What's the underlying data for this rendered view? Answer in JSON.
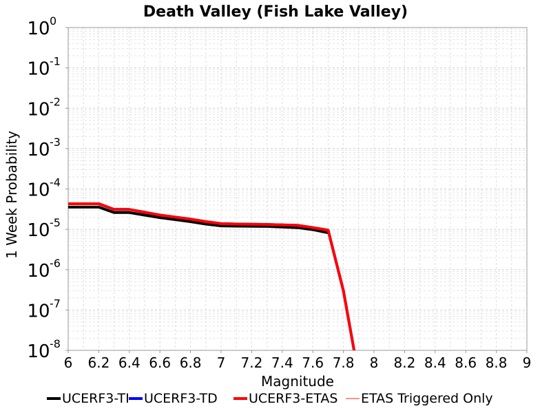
{
  "chart_data": {
    "type": "line",
    "title": "Death Valley (Fish Lake Valley)",
    "xlabel": "Magnitude",
    "ylabel": "1 Week Probability",
    "xlim": [
      6,
      9
    ],
    "ylim": [
      1e-08,
      1
    ],
    "yscale": "log",
    "grid": true,
    "legend_position": "bottom",
    "x_ticks": [
      "6",
      "6.2",
      "6.4",
      "6.6",
      "6.8",
      "7",
      "7.2",
      "7.4",
      "7.6",
      "7.8",
      "8",
      "8.2",
      "8.4",
      "8.6",
      "8.8",
      "9"
    ],
    "y_ticks": [
      {
        "base": "10",
        "exp": "0",
        "value": 1
      },
      {
        "base": "10",
        "exp": "-1",
        "value": 0.1
      },
      {
        "base": "10",
        "exp": "-2",
        "value": 0.01
      },
      {
        "base": "10",
        "exp": "-3",
        "value": 0.001
      },
      {
        "base": "10",
        "exp": "-4",
        "value": 0.0001
      },
      {
        "base": "10",
        "exp": "-5",
        "value": 1e-05
      },
      {
        "base": "10",
        "exp": "-6",
        "value": 1e-06
      },
      {
        "base": "10",
        "exp": "-7",
        "value": 1e-07
      },
      {
        "base": "10",
        "exp": "-8",
        "value": 1e-08
      }
    ],
    "series": [
      {
        "name": "UCERF3-TI",
        "color": "#000000",
        "x": [
          6.0,
          6.2,
          6.3,
          6.4,
          6.5,
          6.6,
          6.8,
          6.9,
          7.0,
          7.1,
          7.3,
          7.5,
          7.6,
          7.7
        ],
        "y": [
          3.55e-05,
          3.55e-05,
          2.6e-05,
          2.6e-05,
          2.25e-05,
          1.95e-05,
          1.55e-05,
          1.35e-05,
          1.22e-05,
          1.2e-05,
          1.18e-05,
          1.1e-05,
          9.8e-06,
          8.2e-06
        ]
      },
      {
        "name": "UCERF3-TD",
        "color": "#0000ff",
        "x": [
          6.0,
          6.2,
          6.3,
          6.4,
          6.5,
          6.6,
          6.8,
          6.9,
          7.0,
          7.1,
          7.3,
          7.5,
          7.6,
          7.7,
          7.8,
          7.87
        ],
        "y": [
          4.3e-05,
          4.3e-05,
          3.1e-05,
          3.1e-05,
          2.65e-05,
          2.25e-05,
          1.78e-05,
          1.55e-05,
          1.38e-05,
          1.35e-05,
          1.32e-05,
          1.25e-05,
          1.1e-05,
          9.5e-06,
          3e-07,
          1e-08
        ]
      },
      {
        "name": "UCERF3-ETAS",
        "color": "#ff0000",
        "x": [
          6.0,
          6.2,
          6.3,
          6.4,
          6.5,
          6.6,
          6.8,
          6.9,
          7.0,
          7.1,
          7.3,
          7.5,
          7.6,
          7.7,
          7.8,
          7.87
        ],
        "y": [
          4.3e-05,
          4.3e-05,
          3.1e-05,
          3.1e-05,
          2.65e-05,
          2.25e-05,
          1.78e-05,
          1.55e-05,
          1.38e-05,
          1.35e-05,
          1.32e-05,
          1.25e-05,
          1.1e-05,
          9.5e-06,
          3e-07,
          1e-08
        ]
      },
      {
        "name": "ETAS Triggered Only",
        "color": "#ff6b6b",
        "x": [],
        "y": []
      }
    ]
  }
}
